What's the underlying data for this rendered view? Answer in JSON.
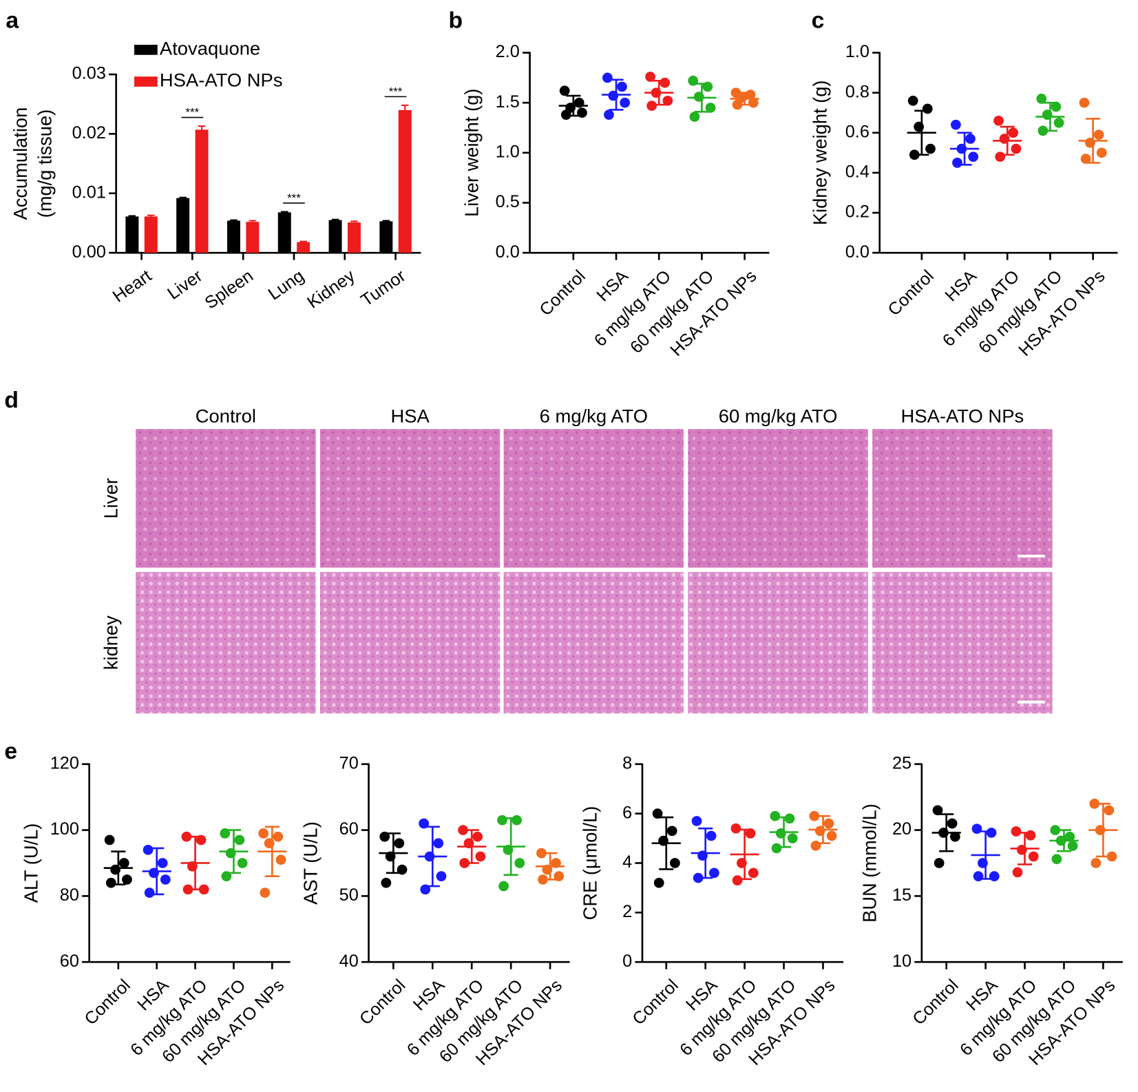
{
  "chart_data": [
    {
      "type": "bar",
      "panel": "a",
      "ylabel": [
        "Accumulation",
        "(mg/g tissue)"
      ],
      "categories": [
        "Heart",
        "Liver",
        "Spleen",
        "Lung",
        "Kidney",
        "Tumor"
      ],
      "series": [
        {
          "name": "Atovaquone",
          "color": "#000000",
          "values": [
            0.0061,
            0.0092,
            0.0054,
            0.0068,
            0.0055,
            0.0053
          ],
          "errors": [
            0.0001,
            0.0001,
            0.0001,
            0.0001,
            0.0001,
            0.0001
          ]
        },
        {
          "name": "HSA-ATO NPs",
          "color": "#ee1c1c",
          "values": [
            0.0061,
            0.0207,
            0.0052,
            0.0018,
            0.0051,
            0.024
          ],
          "errors": [
            0.0002,
            0.0006,
            0.0002,
            0.0001,
            0.0002,
            0.0008
          ]
        }
      ],
      "annotations": [
        null,
        "***",
        null,
        "***",
        null,
        "***"
      ],
      "ylim": [
        0,
        0.03
      ],
      "yticks": [
        {
          "value": 0,
          "label": "0.00"
        },
        0.01,
        0.02,
        0.03
      ]
    },
    {
      "type": "dot",
      "panel": "b",
      "ylabel": "Liver weight (g)",
      "categories": [
        "Control",
        "HSA",
        "6 mg/kg ATO",
        "60 mg/kg ATO",
        "HSA-ATO NPs"
      ],
      "series": [
        {
          "color": "#000000",
          "values": [
            1.62,
            1.5,
            1.45,
            1.4,
            1.38
          ],
          "mean": 1.47,
          "sd": 0.1
        },
        {
          "color": "#1a1aff",
          "values": [
            1.75,
            1.66,
            1.57,
            1.5,
            1.38
          ],
          "mean": 1.58,
          "sd": 0.15
        },
        {
          "color": "#ee1c1c",
          "values": [
            1.76,
            1.7,
            1.6,
            1.52,
            1.47
          ],
          "mean": 1.6,
          "sd": 0.12
        },
        {
          "color": "#22b222",
          "values": [
            1.72,
            1.66,
            1.56,
            1.45,
            1.36
          ],
          "mean": 1.55,
          "sd": 0.14
        },
        {
          "color": "#f26a1e",
          "values": [
            1.6,
            1.58,
            1.55,
            1.5,
            1.48
          ],
          "mean": 1.54,
          "sd": 0.06
        }
      ],
      "ylim": [
        0,
        2
      ],
      "yticks": [
        {
          "value": 0,
          "label": "0.0"
        },
        0.5,
        {
          "value": 1,
          "label": "1.0"
        },
        1.5,
        {
          "value": 2,
          "label": "2.0"
        }
      ]
    },
    {
      "type": "dot",
      "panel": "c",
      "ylabel": "Kidney weight (g)",
      "categories": [
        "Control",
        "HSA",
        "6 mg/kg ATO",
        "60 mg/kg ATO",
        "HSA-ATO NPs"
      ],
      "series": [
        {
          "color": "#000000",
          "values": [
            0.76,
            0.72,
            0.63,
            0.52,
            0.49
          ],
          "mean": 0.6,
          "sd": 0.11
        },
        {
          "color": "#1a1aff",
          "values": [
            0.64,
            0.57,
            0.52,
            0.48,
            0.45
          ],
          "mean": 0.52,
          "sd": 0.08
        },
        {
          "color": "#ee1c1c",
          "values": [
            0.66,
            0.6,
            0.57,
            0.52,
            0.48
          ],
          "mean": 0.56,
          "sd": 0.07
        },
        {
          "color": "#22b222",
          "values": [
            0.77,
            0.73,
            0.69,
            0.65,
            0.61
          ],
          "mean": 0.68,
          "sd": 0.07
        },
        {
          "color": "#f26a1e",
          "values": [
            0.75,
            0.59,
            0.55,
            0.5,
            0.47
          ],
          "mean": 0.56,
          "sd": 0.11
        }
      ],
      "ylim": [
        0,
        1
      ],
      "yticks": [
        {
          "value": 0,
          "label": "0.0"
        },
        0.2,
        0.4,
        0.6,
        0.8,
        {
          "value": 1,
          "label": "1.0"
        }
      ]
    },
    {
      "type": "dot",
      "panel": "e",
      "ylabel": "ALT (U/L)",
      "categories": [
        "Control",
        "HSA",
        "6 mg/kg ATO",
        "60 mg/kg ATO",
        "HSA-ATO NPs"
      ],
      "series": [
        {
          "color": "#000000",
          "values": [
            97,
            90,
            88,
            85,
            84
          ],
          "mean": 88.5,
          "sd": 5
        },
        {
          "color": "#1a1aff",
          "values": [
            94,
            90,
            87,
            85,
            81
          ],
          "mean": 87.5,
          "sd": 7
        },
        {
          "color": "#ee1c1c",
          "values": [
            98,
            97,
            89,
            82,
            82
          ],
          "mean": 90,
          "sd": 8
        },
        {
          "color": "#22b222",
          "values": [
            99,
            97,
            93,
            90,
            86
          ],
          "mean": 93.5,
          "sd": 6.5
        },
        {
          "color": "#f26a1e",
          "values": [
            99,
            98,
            96,
            91,
            81
          ],
          "mean": 93.5,
          "sd": 7.5
        }
      ],
      "ylim": [
        60,
        120
      ],
      "yticks": [
        60,
        80,
        100,
        120
      ]
    },
    {
      "type": "dot",
      "ylabel": "AST (U/L)",
      "categories": [
        "Control",
        "HSA",
        "6 mg/kg ATO",
        "60 mg/kg ATO",
        "HSA-ATO NPs"
      ],
      "series": [
        {
          "color": "#000000",
          "values": [
            59,
            58,
            56,
            54,
            52
          ],
          "mean": 56.5,
          "sd": 3
        },
        {
          "color": "#1a1aff",
          "values": [
            61,
            58,
            56,
            53,
            51
          ],
          "mean": 56,
          "sd": 4.5
        },
        {
          "color": "#ee1c1c",
          "values": [
            60,
            59,
            58,
            56,
            55
          ],
          "mean": 57.5,
          "sd": 2.5
        },
        {
          "color": "#22b222",
          "values": [
            61.5,
            61.5,
            57,
            55,
            51.5
          ],
          "mean": 57.5,
          "sd": 4.3
        },
        {
          "color": "#f26a1e",
          "values": [
            56.5,
            55,
            54,
            53,
            52.5
          ],
          "mean": 54.5,
          "sd": 2
        }
      ],
      "ylim": [
        40,
        70
      ],
      "yticks": [
        40,
        50,
        60,
        70
      ]
    },
    {
      "type": "dot",
      "ylabel": "CRE (μmol/L)",
      "categories": [
        "Control",
        "HSA",
        "6 mg/kg ATO",
        "60 mg/kg ATO",
        "HSA-ATO NPs"
      ],
      "series": [
        {
          "color": "#000000",
          "values": [
            6,
            5.3,
            4.9,
            4,
            3.2
          ],
          "mean": 4.8,
          "sd": 1.05
        },
        {
          "color": "#1a1aff",
          "values": [
            5.7,
            5.1,
            4.3,
            3.6,
            3.4
          ],
          "mean": 4.4,
          "sd": 1
        },
        {
          "color": "#ee1c1c",
          "values": [
            5.4,
            5.2,
            4,
            3.6,
            3.3
          ],
          "mean": 4.35,
          "sd": 1
        },
        {
          "color": "#22b222",
          "values": [
            5.9,
            5.8,
            5.2,
            5,
            4.6
          ],
          "mean": 5.25,
          "sd": 0.6
        },
        {
          "color": "#f26a1e",
          "values": [
            5.9,
            5.6,
            5.3,
            5.1,
            4.7
          ],
          "mean": 5.35,
          "sd": 0.55
        }
      ],
      "ylim": [
        0,
        8
      ],
      "yticks": [
        0,
        2,
        4,
        6,
        8
      ]
    },
    {
      "type": "dot",
      "ylabel": "BUN (mmol/L)",
      "categories": [
        "Control",
        "HSA",
        "6 mg/kg ATO",
        "60 mg/kg ATO",
        "HSA-ATO NPs"
      ],
      "series": [
        {
          "color": "#000000",
          "values": [
            21.5,
            20.5,
            19.8,
            19.5,
            17.5
          ],
          "mean": 19.8,
          "sd": 1.4
        },
        {
          "color": "#1a1aff",
          "values": [
            20.1,
            19.8,
            17.5,
            16.5,
            16.5
          ],
          "mean": 18.1,
          "sd": 1.8
        },
        {
          "color": "#ee1c1c",
          "values": [
            19.9,
            19.6,
            18.5,
            18,
            16.8
          ],
          "mean": 18.6,
          "sd": 1.2
        },
        {
          "color": "#22b222",
          "values": [
            20,
            19.5,
            19.2,
            18.8,
            17.8
          ],
          "mean": 19.2,
          "sd": 0.8
        },
        {
          "color": "#f26a1e",
          "values": [
            22,
            21.5,
            20,
            18,
            17.5
          ],
          "mean": 20,
          "sd": 2
        }
      ],
      "ylim": [
        10,
        25
      ],
      "yticks": [
        10,
        15,
        20,
        25
      ]
    }
  ],
  "micrographs": {
    "panel": "d",
    "columns": [
      "Control",
      "HSA",
      "6 mg/kg ATO",
      "60 mg/kg ATO",
      "HSA-ATO NPs"
    ],
    "rows": [
      "Liver",
      "kidney"
    ]
  }
}
